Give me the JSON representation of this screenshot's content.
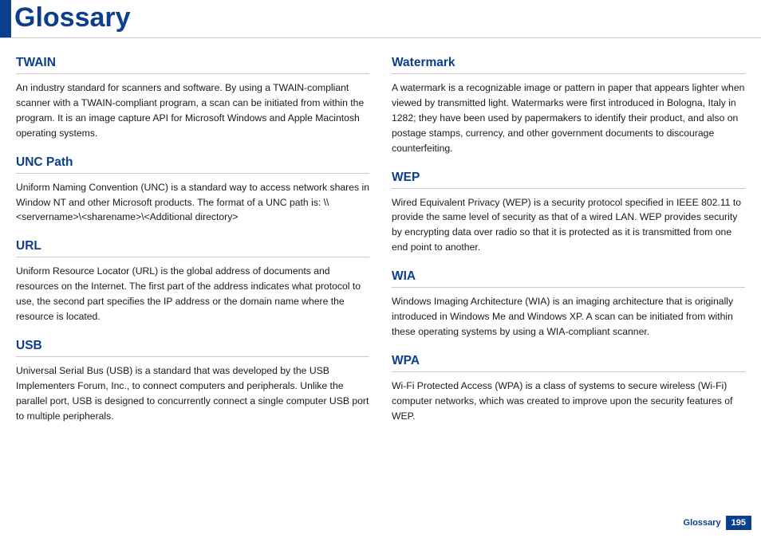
{
  "header": {
    "title": "Glossary"
  },
  "left": [
    {
      "term": "TWAIN",
      "def": "An industry standard for scanners and software. By using a TWAIN-compliant scanner with a TWAIN-compliant program, a scan can be initiated from within the program. It is an image capture API for Microsoft Windows and Apple Macintosh operating systems."
    },
    {
      "term": "UNC Path",
      "def": "Uniform Naming Convention (UNC) is a standard way to access network shares in Window NT and other Microsoft products. The format of a UNC path is: \\\\<servername>\\<sharename>\\<Additional directory>"
    },
    {
      "term": "URL",
      "def": "Uniform Resource Locator (URL) is the global address of documents and resources on the Internet. The first part of the address indicates what protocol to use, the second part specifies the IP address or the domain name where the resource is located."
    },
    {
      "term": "USB",
      "def": "Universal Serial Bus (USB) is a standard that was developed by the USB Implementers Forum, Inc., to connect computers and peripherals. Unlike the parallel port, USB is designed to concurrently connect a single computer USB port to multiple peripherals."
    }
  ],
  "right": [
    {
      "term": "Watermark",
      "def": "A watermark is a recognizable image or pattern in paper that appears lighter when viewed by transmitted light. Watermarks were first introduced in Bologna, Italy in 1282; they have been used by papermakers to identify their product, and also on postage stamps, currency, and other government documents to discourage counterfeiting."
    },
    {
      "term": "WEP",
      "def": "Wired Equivalent Privacy (WEP) is a security protocol specified in IEEE 802.11 to provide the same level of security as that of a wired LAN. WEP provides security by encrypting data over radio so that it is protected as it is transmitted from one end point to another."
    },
    {
      "term": "WIA",
      "def": "Windows Imaging Architecture (WIA) is an imaging architecture that is originally introduced in Windows Me and Windows XP. A scan can be initiated from within these operating systems by using a WIA-compliant scanner."
    },
    {
      "term": "WPA",
      "def": "Wi-Fi Protected Access (WPA) is a class of systems to secure wireless (Wi-Fi) computer networks, which was created to improve upon the security features of WEP."
    }
  ],
  "footer": {
    "label": "Glossary",
    "page": "195"
  }
}
